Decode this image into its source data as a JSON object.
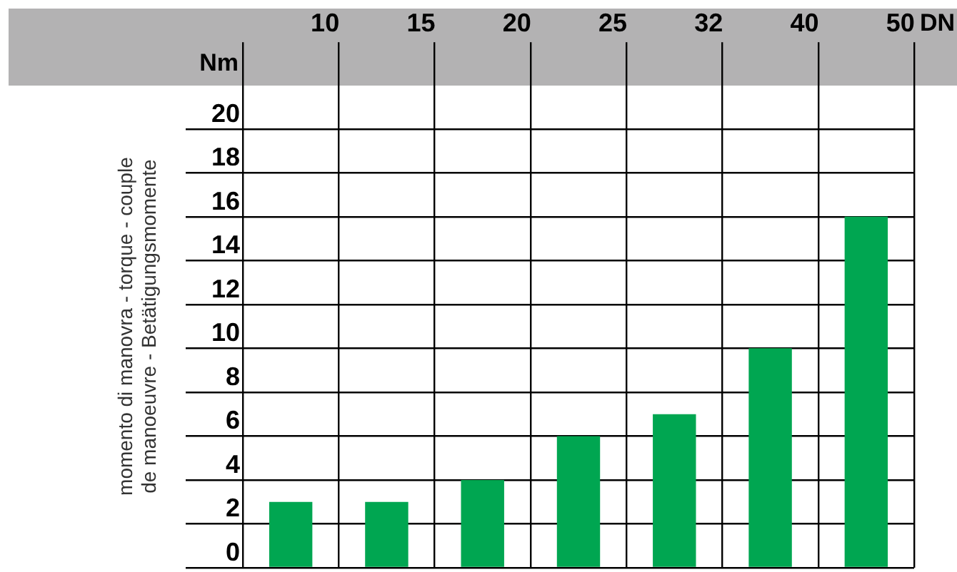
{
  "chart_data": {
    "type": "bar",
    "xlabel": "DN",
    "ylabel": "momento di manovra - torque - couple\nde manoeuvre - Betätigungsmomente",
    "annotations": [
      "Nm"
    ],
    "categories": [
      "10",
      "15",
      "20",
      "25",
      "32",
      "40",
      "50"
    ],
    "values": [
      3,
      3,
      4,
      6,
      7,
      10,
      16
    ],
    "color": "#00a651",
    "ylim": [
      0,
      22
    ],
    "yticks": [
      0,
      2,
      4,
      6,
      8,
      10,
      12,
      14,
      16,
      18,
      20
    ],
    "grid": true,
    "legend": false
  }
}
